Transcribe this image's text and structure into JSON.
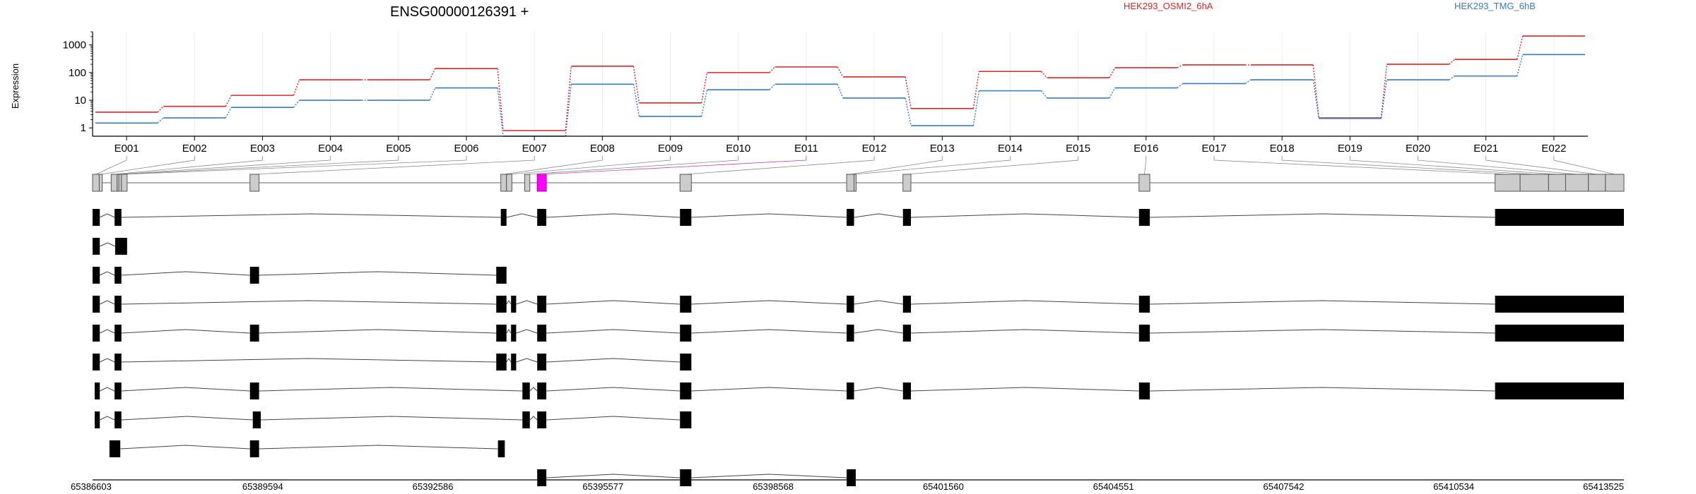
{
  "chart_data": {
    "type": "line",
    "title": "ENSG00000126391 +",
    "ylabel": "Expression",
    "yscale": "log",
    "ylim": [
      0.5,
      3000
    ],
    "yticks": [
      1,
      10,
      100,
      1000
    ],
    "ytick_labels": [
      "1",
      "10",
      "100",
      "1000"
    ],
    "categories": [
      "E001",
      "E002",
      "E003",
      "E004",
      "E005",
      "E006",
      "E007",
      "E008",
      "E009",
      "E010",
      "E011",
      "E012",
      "E013",
      "E014",
      "E015",
      "E016",
      "E017",
      "E018",
      "E019",
      "E020",
      "E021",
      "E022"
    ],
    "series": [
      {
        "name": "HEK293_OSMI2_6hA",
        "color": "#d62728",
        "values": [
          3.7,
          6,
          15,
          55,
          55,
          140,
          0.8,
          170,
          8,
          100,
          160,
          70,
          5,
          110,
          65,
          150,
          190,
          190,
          2.3,
          200,
          300,
          2100
        ]
      },
      {
        "name": "HEK293_TMG_6hB",
        "color": "#3a7bbf",
        "values": [
          1.5,
          2.3,
          5.5,
          10,
          10,
          28,
          0.5,
          38,
          2.6,
          24,
          38,
          12,
          1.2,
          22,
          12,
          28,
          40,
          55,
          2.2,
          55,
          75,
          450
        ]
      }
    ],
    "genome_axis": {
      "start": 65386603,
      "end": 65413525,
      "tick_labels": [
        "65386603",
        "65389594",
        "65392586",
        "65395577",
        "65398568",
        "65401560",
        "65404551",
        "65407542",
        "65410534",
        "65413525"
      ]
    },
    "exon_bins": [
      {
        "id": "E001",
        "start": 65386603,
        "end": 65386720,
        "highlight": false
      },
      {
        "id": "E002",
        "start": 65386720,
        "end": 65386773,
        "highlight": false
      },
      {
        "id": "E003",
        "start": 65386930,
        "end": 65387035,
        "highlight": false
      },
      {
        "id": "E004",
        "start": 65387035,
        "end": 65387065,
        "highlight": false
      },
      {
        "id": "E005",
        "start": 65387065,
        "end": 65387110,
        "highlight": false
      },
      {
        "id": "E006",
        "start": 65387110,
        "end": 65387210,
        "highlight": false
      },
      {
        "id": "E007",
        "start": 65389370,
        "end": 65389530,
        "highlight": false
      },
      {
        "id": "E008",
        "start": 65393780,
        "end": 65393880,
        "highlight": false
      },
      {
        "id": "E009",
        "start": 65393880,
        "end": 65393975,
        "highlight": false
      },
      {
        "id": "E010",
        "start": 65394200,
        "end": 65394290,
        "highlight": false
      },
      {
        "id": "E011",
        "start": 65394420,
        "end": 65394580,
        "highlight": true
      },
      {
        "id": "E012",
        "start": 65396930,
        "end": 65397130,
        "highlight": false
      },
      {
        "id": "E013",
        "start": 65399860,
        "end": 65399990,
        "highlight": false
      },
      {
        "id": "E014",
        "start": 65399990,
        "end": 65400020,
        "highlight": false
      },
      {
        "id": "E015",
        "start": 65400850,
        "end": 65400990,
        "highlight": false
      },
      {
        "id": "E016",
        "start": 65405000,
        "end": 65405190,
        "highlight": false
      },
      {
        "id": "E017",
        "start": 65411260,
        "end": 65411700,
        "highlight": false
      },
      {
        "id": "E018",
        "start": 65411700,
        "end": 65412200,
        "highlight": false
      },
      {
        "id": "E019",
        "start": 65412200,
        "end": 65412500,
        "highlight": false
      },
      {
        "id": "E020",
        "start": 65412500,
        "end": 65412900,
        "highlight": false
      },
      {
        "id": "E021",
        "start": 65412900,
        "end": 65413200,
        "highlight": false
      },
      {
        "id": "E022",
        "start": 65413200,
        "end": 65413525,
        "highlight": false
      }
    ],
    "transcripts": [
      [
        [
          65386603,
          65386730
        ],
        [
          65386990,
          65387110
        ],
        [
          65393780,
          65393880
        ],
        [
          65394420,
          65394580
        ],
        [
          65396930,
          65397130
        ],
        [
          65399860,
          65399990
        ],
        [
          65400850,
          65400990
        ],
        [
          65405000,
          65405190
        ],
        [
          65411260,
          65413525
        ]
      ],
      [
        [
          65386603,
          65386730
        ],
        [
          65387000,
          65387210
        ]
      ],
      [
        [
          65386603,
          65386730
        ],
        [
          65386990,
          65387110
        ],
        [
          65389370,
          65389530
        ],
        [
          65393700,
          65393880
        ]
      ],
      [
        [
          65386603,
          65386730
        ],
        [
          65386990,
          65387110
        ],
        [
          65393700,
          65393880
        ],
        [
          65393960,
          65394050
        ],
        [
          65394420,
          65394580
        ],
        [
          65396930,
          65397130
        ],
        [
          65399860,
          65399990
        ],
        [
          65400850,
          65400990
        ],
        [
          65405000,
          65405190
        ],
        [
          65411260,
          65413525
        ]
      ],
      [
        [
          65386603,
          65386730
        ],
        [
          65386990,
          65387110
        ],
        [
          65389370,
          65389530
        ],
        [
          65393700,
          65393880
        ],
        [
          65393960,
          65394050
        ],
        [
          65394420,
          65394580
        ],
        [
          65396930,
          65397130
        ],
        [
          65399860,
          65399990
        ],
        [
          65400850,
          65400990
        ],
        [
          65405000,
          65405190
        ],
        [
          65411260,
          65413525
        ]
      ],
      [
        [
          65386603,
          65386730
        ],
        [
          65386990,
          65387110
        ],
        [
          65393700,
          65393880
        ],
        [
          65393960,
          65394050
        ],
        [
          65394420,
          65394580
        ],
        [
          65396930,
          65397130
        ]
      ],
      [
        [
          65386640,
          65386730
        ],
        [
          65386990,
          65387110
        ],
        [
          65389370,
          65389530
        ],
        [
          65394160,
          65394290
        ],
        [
          65394420,
          65394580
        ],
        [
          65396930,
          65397130
        ],
        [
          65399860,
          65399990
        ],
        [
          65400850,
          65400990
        ],
        [
          65405000,
          65405190
        ],
        [
          65411260,
          65413525
        ]
      ],
      [
        [
          65386640,
          65386730
        ],
        [
          65386990,
          65387110
        ],
        [
          65389420,
          65389560
        ],
        [
          65394160,
          65394290
        ],
        [
          65394420,
          65394580
        ],
        [
          65396930,
          65397130
        ]
      ],
      [
        [
          65386900,
          65387090
        ],
        [
          65389370,
          65389530
        ],
        [
          65393730,
          65393850
        ]
      ],
      [
        [
          65394420,
          65394580
        ],
        [
          65396930,
          65397130
        ],
        [
          65399860,
          65400020
        ]
      ]
    ]
  }
}
